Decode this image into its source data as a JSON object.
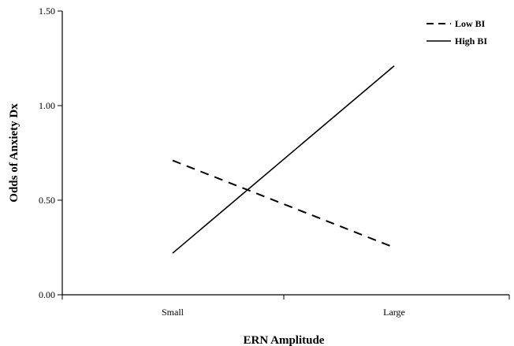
{
  "chart_data": {
    "type": "line",
    "categories": [
      "Small",
      "Large"
    ],
    "series": [
      {
        "name": "Low BI",
        "values": [
          0.71,
          0.25
        ],
        "dash": "dashed"
      },
      {
        "name": "High BI",
        "values": [
          0.22,
          1.21
        ],
        "dash": "solid"
      }
    ],
    "xlabel": "ERN Amplitude",
    "ylabel": "Odds of Anxiety Dx",
    "ylim": [
      0.0,
      1.5
    ],
    "yticks": [
      "0.00",
      "0.50",
      "1.00",
      "1.50"
    ],
    "grid": false,
    "legend_position": "top-right"
  }
}
